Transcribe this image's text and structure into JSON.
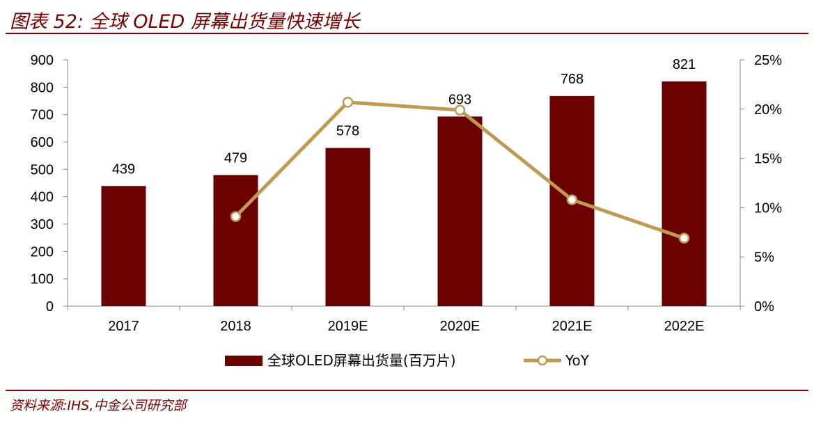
{
  "header": {
    "title": "图表 52:  全球 OLED 屏幕出货量快速增长"
  },
  "footer": {
    "source": "资料来源:IHS,中金公司研究部"
  },
  "colors": {
    "bar": "#6b0000",
    "line": "#c09a52",
    "accent": "#8b0000"
  },
  "chart_data": {
    "type": "bar",
    "categories": [
      "2017",
      "2018",
      "2019E",
      "2020E",
      "2021E",
      "2022E"
    ],
    "series": [
      {
        "name": "全球OLED屏幕出货量(百万片)",
        "type": "bar",
        "axis": "left",
        "values": [
          439,
          479,
          578,
          693,
          768,
          821
        ]
      },
      {
        "name": "YoY",
        "type": "line",
        "axis": "right",
        "values": [
          null,
          9.1,
          20.7,
          19.9,
          10.8,
          6.9
        ]
      }
    ],
    "y_left": {
      "ylim": [
        0,
        900
      ],
      "ticks": [
        "0",
        "100",
        "200",
        "300",
        "400",
        "500",
        "600",
        "700",
        "800",
        "900"
      ]
    },
    "y_right": {
      "ylim": [
        0,
        25
      ],
      "ticks": [
        "0%",
        "5%",
        "10%",
        "15%",
        "20%",
        "25%"
      ]
    },
    "data_labels": [
      "439",
      "479",
      "578",
      "693",
      "768",
      "821"
    ],
    "legend_position": "bottom",
    "grid": false
  }
}
